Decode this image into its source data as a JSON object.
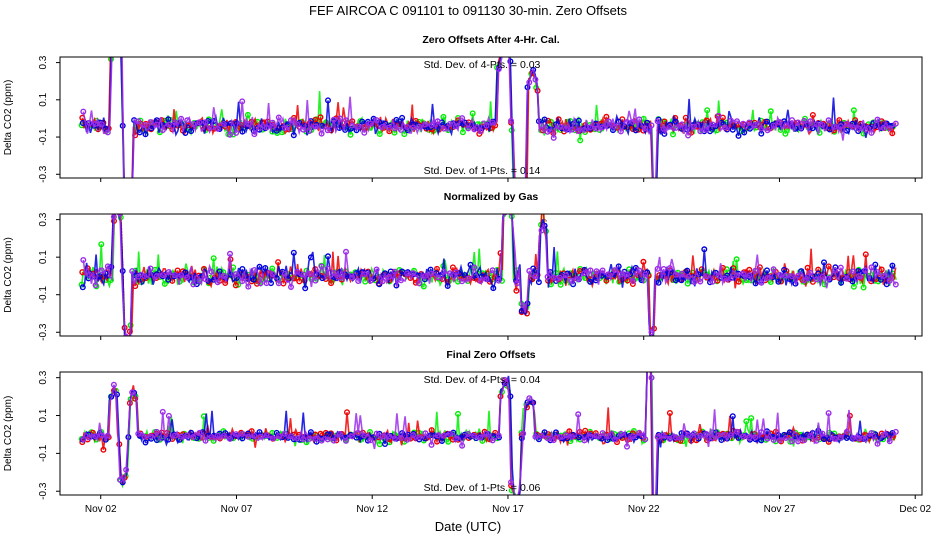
{
  "title": "FEF   AIRCOA C   091101 to 091130   30-min. Zero Offsets",
  "xlabel": "Date (UTC)",
  "ylabel": "Delta CO2 (ppm)",
  "x_ticks": [
    "Nov 02",
    "Nov 07",
    "Nov 12",
    "Nov 17",
    "Nov 22",
    "Nov 27",
    "Dec 02"
  ],
  "y_ticks": [
    "0.3",
    "0.1",
    "-0.1",
    "-0.3"
  ],
  "series_colors": {
    "green": "#00ee00",
    "red": "#ee0000",
    "blue": "#0000dd",
    "purple": "#9a2bea",
    "black": "#000000"
  },
  "chart_data": [
    {
      "type": "scatter",
      "title": "Zero Offsets After 4-Hr. Cal.",
      "ylim": [
        -0.32,
        0.33
      ],
      "x_range": [
        "Nov 01 12:00",
        "Dec 02 06:00"
      ],
      "annotations": [
        {
          "text": "Std. Dev. of 4-Pts. =  0.03",
          "position": "top-center"
        },
        {
          "text": "Std. Dev. of 1-Pts. =  0.14",
          "position": "bottom-center"
        }
      ],
      "series_colors": [
        "green",
        "red",
        "blue",
        "purple"
      ],
      "baseline": -0.04,
      "spread": 0.06,
      "features": [
        {
          "day": 2.6,
          "dir": 1,
          "mag": 0.5,
          "width": 0.25
        },
        {
          "day": 3.0,
          "dir": -1,
          "mag": 0.5,
          "width": 0.2
        },
        {
          "day": 16.9,
          "dir": 1,
          "mag": 0.45,
          "width": 0.3
        },
        {
          "day": 17.4,
          "dir": -1,
          "mag": 0.45,
          "width": 0.3
        },
        {
          "day": 17.9,
          "dir": 1,
          "mag": 0.3,
          "width": 0.2
        },
        {
          "day": 22.4,
          "dir": -1,
          "mag": 0.4,
          "width": 0.1
        }
      ]
    },
    {
      "type": "scatter",
      "title": "Normalized by Gas",
      "ylim": [
        -0.32,
        0.33
      ],
      "x_range": [
        "Nov 01 12:00",
        "Dec 02 06:00"
      ],
      "series_colors": [
        "green",
        "red",
        "blue",
        "purple",
        "black"
      ],
      "baseline": 0.0,
      "spread": 0.07,
      "features": [
        {
          "day": 2.6,
          "dir": 1,
          "mag": 0.4,
          "width": 0.15
        },
        {
          "day": 3.0,
          "dir": -1,
          "mag": 0.4,
          "width": 0.15
        },
        {
          "day": 17.0,
          "dir": 1,
          "mag": 0.4,
          "width": 0.2
        },
        {
          "day": 17.6,
          "dir": -1,
          "mag": 0.2,
          "width": 0.15
        },
        {
          "day": 18.3,
          "dir": 1,
          "mag": 0.3,
          "width": 0.15
        },
        {
          "day": 22.3,
          "dir": -1,
          "mag": 0.4,
          "width": 0.1
        }
      ]
    },
    {
      "type": "scatter",
      "title": "Final Zero Offsets",
      "ylim": [
        -0.32,
        0.33
      ],
      "x_range": [
        "Nov 01 12:00",
        "Dec 02 06:00"
      ],
      "annotations": [
        {
          "text": "Std. Dev. of 4-Pts. =  0.04",
          "position": "top-center"
        },
        {
          "text": "Std. Dev. of 1-Pts. =  0.06",
          "position": "bottom-center"
        }
      ],
      "series_colors": [
        "green",
        "red",
        "blue",
        "purple"
      ],
      "baseline": -0.01,
      "spread": 0.04,
      "features": [
        {
          "day": 2.5,
          "dir": 1,
          "mag": 0.25,
          "width": 0.2
        },
        {
          "day": 2.8,
          "dir": -1,
          "mag": 0.25,
          "width": 0.2
        },
        {
          "day": 3.2,
          "dir": 1,
          "mag": 0.25,
          "width": 0.15
        },
        {
          "day": 16.9,
          "dir": 1,
          "mag": 0.3,
          "width": 0.2
        },
        {
          "day": 17.3,
          "dir": -1,
          "mag": 0.35,
          "width": 0.2
        },
        {
          "day": 17.8,
          "dir": 1,
          "mag": 0.2,
          "width": 0.2
        },
        {
          "day": 22.2,
          "dir": 1,
          "mag": 0.45,
          "width": 0.1
        },
        {
          "day": 22.4,
          "dir": -1,
          "mag": 0.45,
          "width": 0.1
        }
      ]
    }
  ]
}
